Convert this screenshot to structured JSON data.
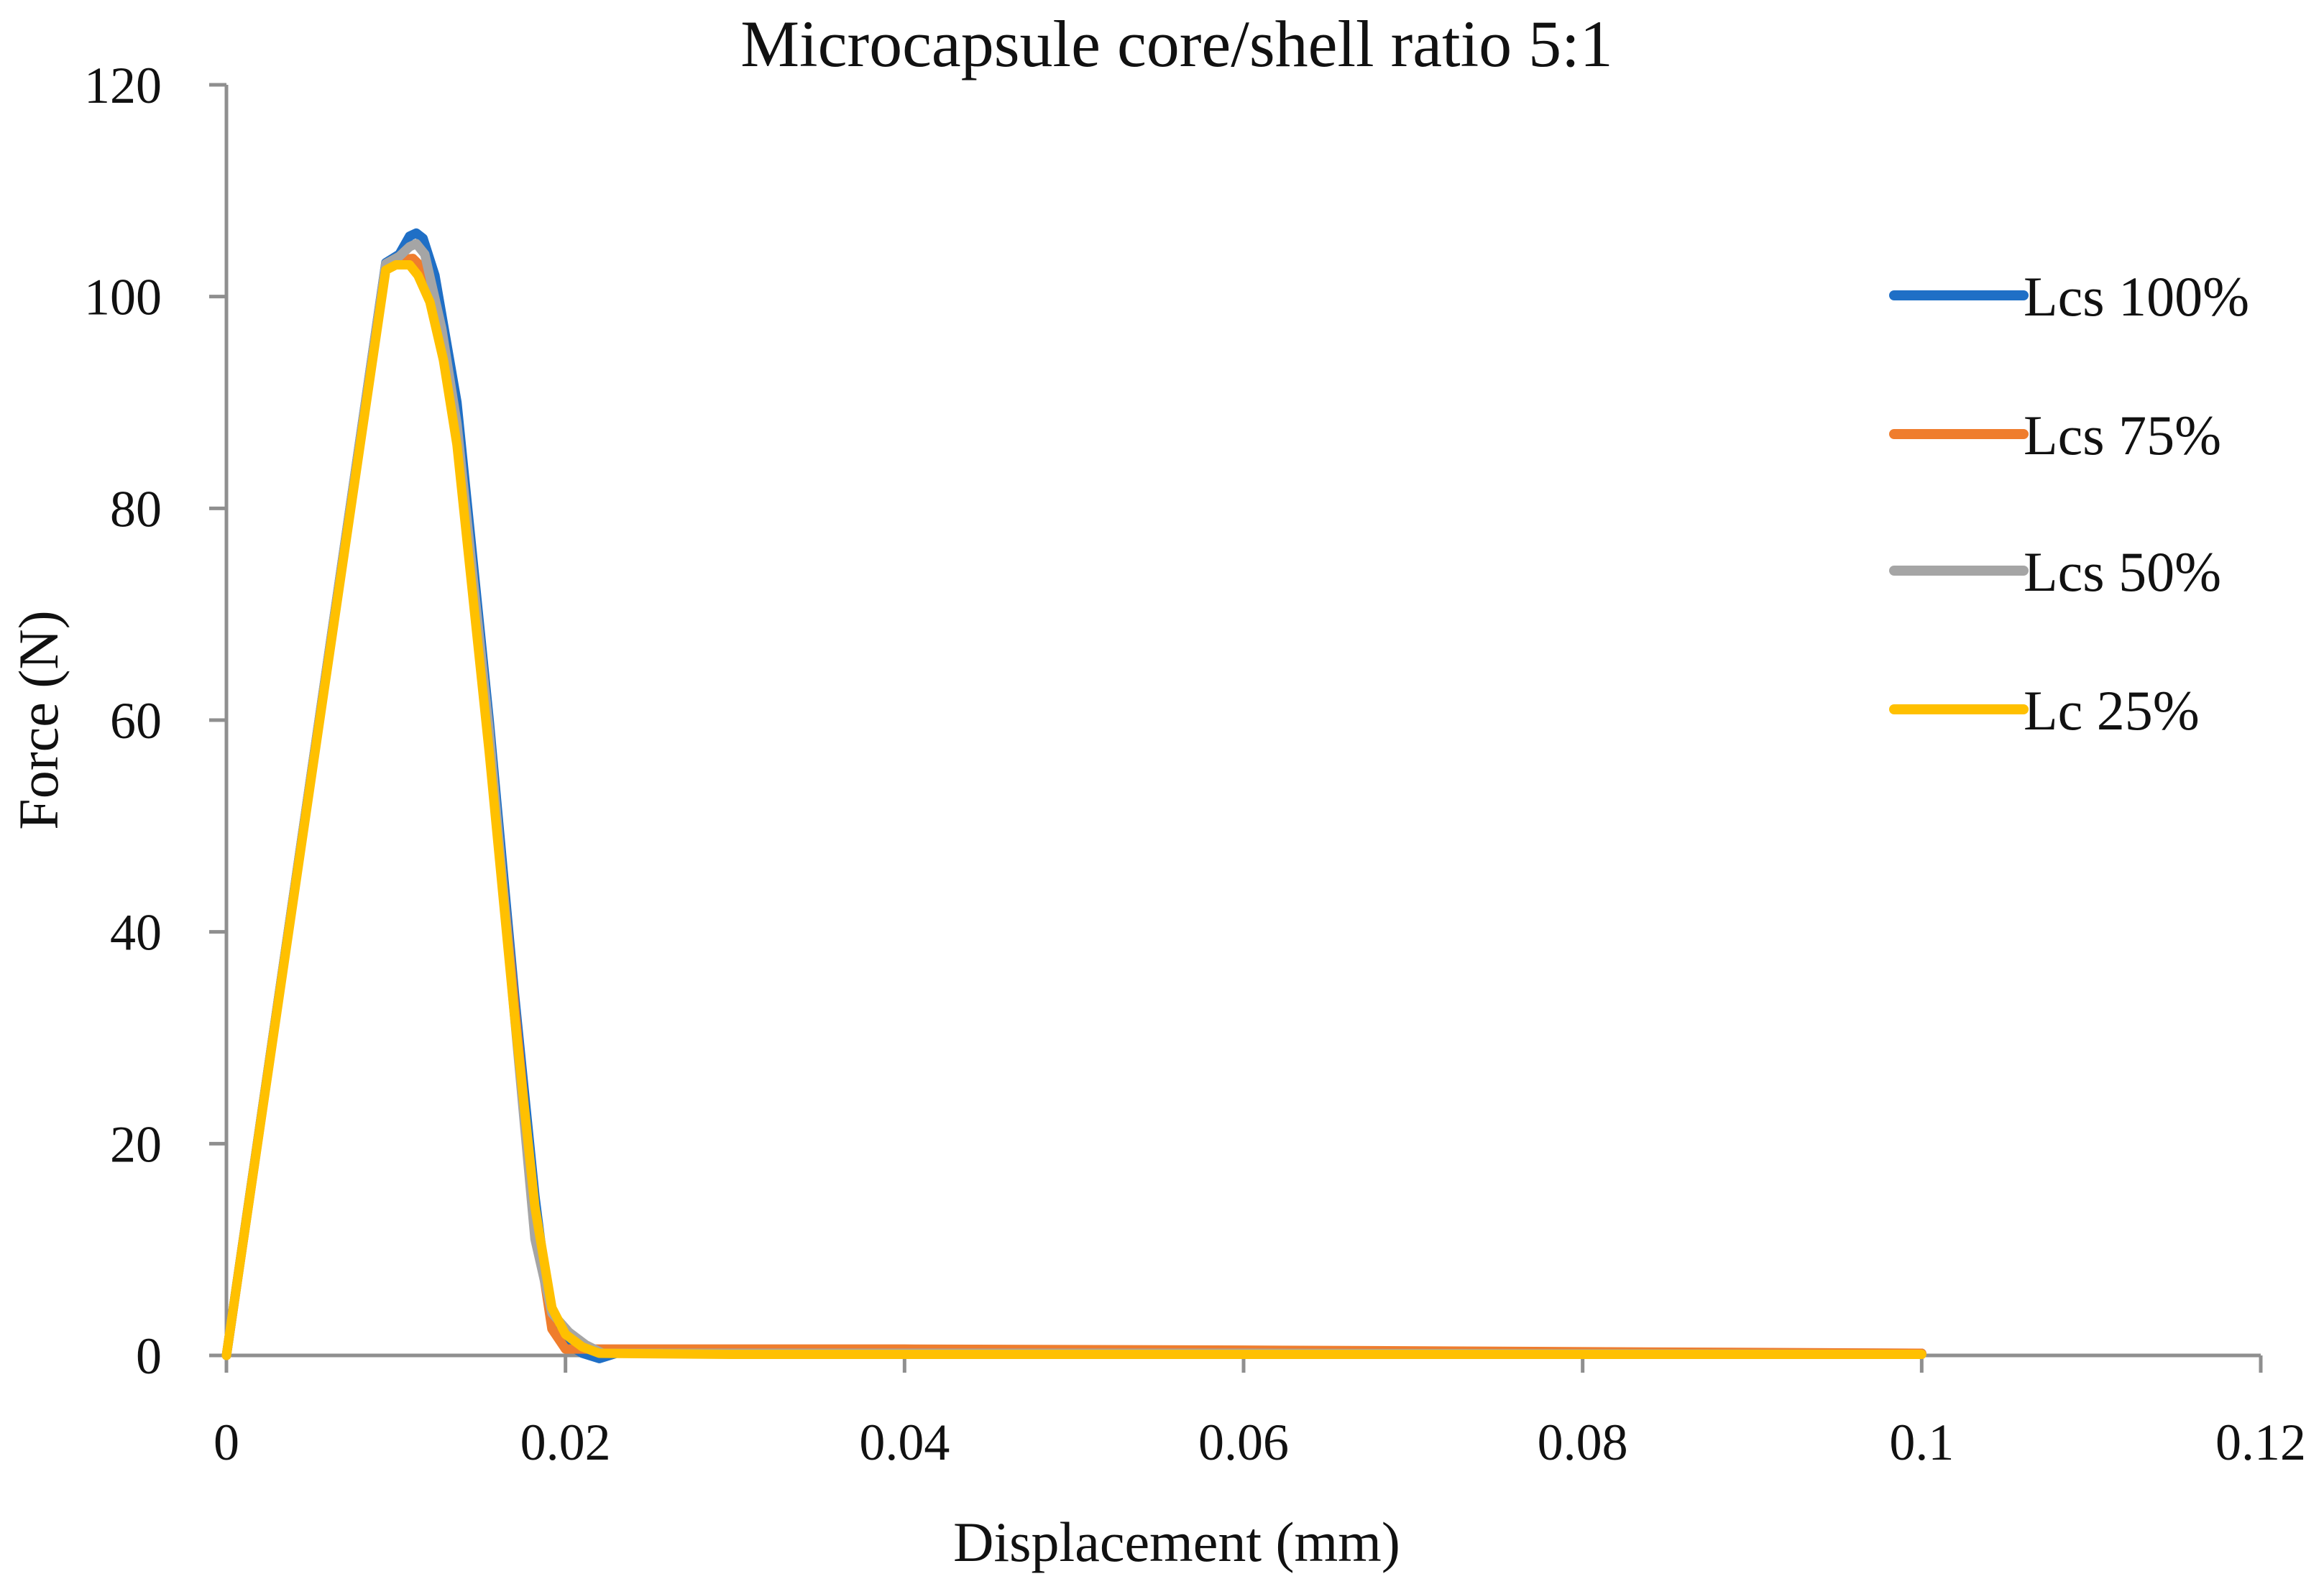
{
  "chart_data": {
    "type": "line",
    "title": "Microcapsule core/shell ratio 5:1",
    "xlabel": "Displacement (mm)",
    "ylabel": "Force (N)",
    "xlim": [
      0,
      0.12
    ],
    "ylim": [
      0,
      120
    ],
    "xticks": [
      0,
      0.02,
      0.04,
      0.06,
      0.08,
      0.1,
      0.12
    ],
    "yticks": [
      0,
      20,
      40,
      60,
      80,
      100,
      120
    ],
    "xtick_labels": [
      "0",
      "0.02",
      "0.04",
      "0.06",
      "0.08",
      "0.1",
      "0.12"
    ],
    "ytick_labels": [
      "0",
      "20",
      "40",
      "60",
      "80",
      "100",
      "120"
    ],
    "grid": false,
    "legend_position": "right",
    "series": [
      {
        "name": "Lcs 100%",
        "color": "#1f6fc6",
        "points": [
          [
            0,
            0
          ],
          [
            0.0094,
            103.2
          ],
          [
            0.0102,
            104.0
          ],
          [
            0.0108,
            105.7
          ],
          [
            0.0112,
            106.0
          ],
          [
            0.0116,
            105.5
          ],
          [
            0.0123,
            102.0
          ],
          [
            0.0136,
            90.0
          ],
          [
            0.0155,
            60.0
          ],
          [
            0.017,
            34.0
          ],
          [
            0.0182,
            15.0
          ],
          [
            0.019,
            5.0
          ],
          [
            0.02,
            1.2
          ],
          [
            0.021,
            0.2
          ],
          [
            0.022,
            -0.3
          ],
          [
            0.023,
            0.2
          ],
          [
            0.03,
            0.3
          ],
          [
            0.06,
            0.3
          ],
          [
            0.1,
            0.2
          ]
        ]
      },
      {
        "name": "Lcs 75%",
        "color": "#ef7d2d",
        "points": [
          [
            0,
            0
          ],
          [
            0.0094,
            103.0
          ],
          [
            0.0103,
            103.5
          ],
          [
            0.011,
            103.6
          ],
          [
            0.0117,
            102.5
          ],
          [
            0.0127,
            96.0
          ],
          [
            0.0136,
            87.0
          ],
          [
            0.0155,
            58.0
          ],
          [
            0.017,
            33.0
          ],
          [
            0.0182,
            13.0
          ],
          [
            0.0192,
            2.5
          ],
          [
            0.02,
            0.6
          ],
          [
            0.021,
            0.6
          ],
          [
            0.04,
            0.6
          ],
          [
            0.06,
            0.5
          ],
          [
            0.074,
            0.4
          ],
          [
            0.1,
            0.2
          ]
        ]
      },
      {
        "name": "Lcs 50%",
        "color": "#a5a5a5",
        "points": [
          [
            0,
            0
          ],
          [
            0.0094,
            103.1
          ],
          [
            0.0102,
            103.8
          ],
          [
            0.0108,
            104.7
          ],
          [
            0.0112,
            105.0
          ],
          [
            0.0117,
            104.0
          ],
          [
            0.0127,
            97.0
          ],
          [
            0.0136,
            88.0
          ],
          [
            0.0155,
            59.0
          ],
          [
            0.017,
            32.0
          ],
          [
            0.0182,
            11.0
          ],
          [
            0.0192,
            4.0
          ],
          [
            0.0202,
            2.2
          ],
          [
            0.0212,
            1.0
          ],
          [
            0.0222,
            0.2
          ],
          [
            0.03,
            0.2
          ],
          [
            0.06,
            0.2
          ],
          [
            0.1,
            0.1
          ]
        ]
      },
      {
        "name": "Lc 25%",
        "color": "#ffc000",
        "points": [
          [
            0,
            0
          ],
          [
            0.0094,
            102.5
          ],
          [
            0.01,
            103.0
          ],
          [
            0.0108,
            103.0
          ],
          [
            0.0113,
            102.0
          ],
          [
            0.012,
            99.5
          ],
          [
            0.0128,
            94.0
          ],
          [
            0.0136,
            86.0
          ],
          [
            0.0155,
            57.0
          ],
          [
            0.017,
            32.0
          ],
          [
            0.0182,
            14.0
          ],
          [
            0.0192,
            4.5
          ],
          [
            0.02,
            2.0
          ],
          [
            0.021,
            0.8
          ],
          [
            0.022,
            0.2
          ],
          [
            0.03,
            0.1
          ],
          [
            0.06,
            0.1
          ],
          [
            0.1,
            0.1
          ]
        ]
      }
    ]
  }
}
